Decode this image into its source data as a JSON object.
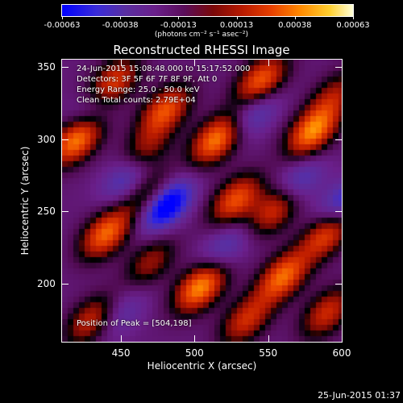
{
  "chart_data": {
    "type": "heatmap",
    "title": "Reconstructed RHESSI Image",
    "xlabel": "Heliocentric X (arcsec)",
    "ylabel": "Heliocentric Y (arcsec)",
    "xlim": [
      410,
      600
    ],
    "ylim": [
      160,
      355
    ],
    "xticks": [
      450,
      500,
      550,
      600
    ],
    "yticks": [
      200,
      250,
      300,
      350
    ],
    "colorbar": {
      "ticks": [
        "-0.00063",
        "-0.00038",
        "-0.00013",
        "0.00013",
        "0.00038",
        "0.00063"
      ],
      "unit": "(photons cm⁻² s⁻¹ asec⁻²)",
      "range": [
        -0.00063,
        0.00063
      ]
    },
    "annotations": [
      "24-Jun-2015 15:08:48.000 to 15:17:52.000",
      "Detectors: 3F 5F 6F 7F 8F 9F, Att 0",
      "Energy Range: 25.0 - 50.0 keV",
      "Clean     Total counts: 2.79E+04"
    ],
    "peak_label": "Position of Peak = [504,198]",
    "peak": [
      504,
      198
    ],
    "blobs": [
      {
        "x": 420,
        "y": 300,
        "value": 0.00063
      },
      {
        "x": 444,
        "y": 338,
        "value": 0.0005
      },
      {
        "x": 480,
        "y": 320,
        "value": 0.0005
      },
      {
        "x": 515,
        "y": 300,
        "value": 0.0006
      },
      {
        "x": 545,
        "y": 340,
        "value": 0.00055
      },
      {
        "x": 580,
        "y": 305,
        "value": 0.0006
      },
      {
        "x": 465,
        "y": 290,
        "value": 0.00035
      },
      {
        "x": 440,
        "y": 235,
        "value": 0.00055
      },
      {
        "x": 470,
        "y": 262,
        "value": 0.00035
      },
      {
        "x": 528,
        "y": 258,
        "value": 0.0005
      },
      {
        "x": 555,
        "y": 252,
        "value": 0.00045
      },
      {
        "x": 590,
        "y": 235,
        "value": 0.0005
      },
      {
        "x": 504,
        "y": 198,
        "value": 0.00063
      },
      {
        "x": 470,
        "y": 215,
        "value": 0.0003
      },
      {
        "x": 535,
        "y": 175,
        "value": 0.0004
      },
      {
        "x": 560,
        "y": 205,
        "value": 0.00055
      },
      {
        "x": 590,
        "y": 180,
        "value": 0.0004
      },
      {
        "x": 430,
        "y": 175,
        "value": 0.0004
      },
      {
        "x": 595,
        "y": 330,
        "value": 0.0003
      }
    ],
    "troughs": [
      {
        "x": 480,
        "y": 255,
        "value": -0.00063
      },
      {
        "x": 455,
        "y": 275,
        "value": -0.00035
      },
      {
        "x": 540,
        "y": 318,
        "value": -0.0003
      },
      {
        "x": 570,
        "y": 270,
        "value": -0.0003
      },
      {
        "x": 430,
        "y": 320,
        "value": -0.00025
      },
      {
        "x": 520,
        "y": 225,
        "value": -0.00025
      },
      {
        "x": 600,
        "y": 255,
        "value": -0.00035
      },
      {
        "x": 450,
        "y": 180,
        "value": -0.0002
      }
    ]
  },
  "footer_date": "25-Jun-2015 01:37"
}
